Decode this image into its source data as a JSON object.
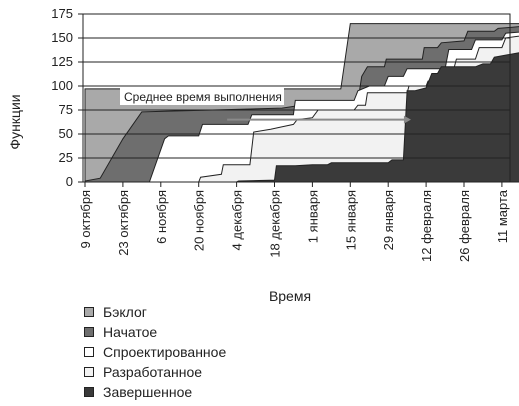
{
  "chart_data": {
    "type": "area",
    "stacking": "cumulative",
    "ylabel": "Функции",
    "xlabel": "Время",
    "ylim": [
      0,
      175
    ],
    "yticks": [
      0,
      25,
      50,
      75,
      100,
      125,
      150,
      175
    ],
    "grid": true,
    "legend_position": "bottom-left",
    "x_categories": [
      "9 октября",
      "23 октября",
      "6 ноября",
      "20 ноября",
      "4 декабря",
      "18 декабря",
      "1 января",
      "15 января",
      "29 января",
      "12 февраля",
      "26 февраля",
      "11 марта"
    ],
    "annotation": {
      "text": "Среднее время выполнения",
      "arrow_from_x": 3.75,
      "arrow_to_x": 8.6,
      "y": 65
    },
    "series": [
      {
        "name": "Бэклог",
        "color": "#a9a9a9",
        "points": [
          [
            0,
            97
          ],
          [
            6.75,
            97
          ],
          [
            7.0,
            165
          ],
          [
            12.0,
            165
          ]
        ]
      },
      {
        "name": "Начатое",
        "color": "#6e6e6e",
        "points": [
          [
            0,
            1
          ],
          [
            0.4,
            4
          ],
          [
            1.0,
            45
          ],
          [
            1.5,
            73
          ],
          [
            5.2,
            77
          ],
          [
            5.7,
            80
          ],
          [
            6.15,
            84
          ],
          [
            7.2,
            84
          ],
          [
            7.3,
            110
          ],
          [
            7.45,
            120
          ],
          [
            7.9,
            120
          ],
          [
            7.95,
            128
          ],
          [
            8.9,
            128
          ],
          [
            8.95,
            140
          ],
          [
            9.3,
            140
          ],
          [
            9.4,
            145
          ],
          [
            10.0,
            147
          ],
          [
            10.1,
            157
          ],
          [
            10.8,
            157
          ],
          [
            10.9,
            160
          ],
          [
            11.5,
            162
          ],
          [
            12.0,
            163
          ]
        ]
      },
      {
        "name": "Спроектированное",
        "color": "#ffffff",
        "points": [
          [
            0,
            0
          ],
          [
            1.7,
            0
          ],
          [
            2.1,
            45
          ],
          [
            2.2,
            48
          ],
          [
            3.0,
            48
          ],
          [
            3.1,
            60
          ],
          [
            4.3,
            60
          ],
          [
            4.4,
            70
          ],
          [
            5.5,
            70
          ],
          [
            5.55,
            85
          ],
          [
            7.1,
            85
          ],
          [
            7.2,
            95
          ],
          [
            7.5,
            100
          ],
          [
            7.9,
            100
          ],
          [
            8.0,
            110
          ],
          [
            8.4,
            110
          ],
          [
            8.5,
            118
          ],
          [
            9.5,
            118
          ],
          [
            9.6,
            138
          ],
          [
            10.2,
            138
          ],
          [
            10.3,
            148
          ],
          [
            11.0,
            148
          ],
          [
            11.1,
            155
          ],
          [
            12.0,
            158
          ]
        ]
      },
      {
        "name": "Разработанное",
        "color": "#f2f2f2",
        "points": [
          [
            0,
            0
          ],
          [
            3.0,
            0
          ],
          [
            3.05,
            5
          ],
          [
            3.6,
            8
          ],
          [
            3.65,
            18
          ],
          [
            4.35,
            18
          ],
          [
            4.45,
            52
          ],
          [
            4.9,
            55
          ],
          [
            5.5,
            60
          ],
          [
            5.6,
            65
          ],
          [
            6.0,
            67
          ],
          [
            6.15,
            75
          ],
          [
            7.1,
            75
          ],
          [
            7.2,
            80
          ],
          [
            7.4,
            80
          ],
          [
            7.45,
            93
          ],
          [
            8.5,
            93
          ],
          [
            8.55,
            100
          ],
          [
            9.0,
            100
          ],
          [
            9.05,
            105
          ],
          [
            9.3,
            108
          ],
          [
            9.4,
            113
          ],
          [
            9.7,
            113
          ],
          [
            9.8,
            128
          ],
          [
            10.3,
            128
          ],
          [
            10.4,
            140
          ],
          [
            11.0,
            140
          ],
          [
            11.1,
            150
          ],
          [
            12.0,
            155
          ]
        ]
      },
      {
        "name": "Завершенное",
        "color": "#3a3a3a",
        "points": [
          [
            0,
            0
          ],
          [
            4.0,
            0
          ],
          [
            4.05,
            1
          ],
          [
            5.0,
            2
          ],
          [
            5.05,
            17
          ],
          [
            5.55,
            17
          ],
          [
            6.0,
            18
          ],
          [
            6.4,
            18
          ],
          [
            6.5,
            20
          ],
          [
            8.0,
            20
          ],
          [
            8.1,
            23
          ],
          [
            8.4,
            23
          ],
          [
            8.5,
            95
          ],
          [
            8.7,
            95
          ],
          [
            9.0,
            98
          ],
          [
            9.15,
            113
          ],
          [
            9.3,
            113
          ],
          [
            9.4,
            120
          ],
          [
            10.3,
            120
          ],
          [
            10.5,
            123
          ],
          [
            10.7,
            123
          ],
          [
            10.8,
            130
          ],
          [
            11.5,
            135
          ],
          [
            11.55,
            160
          ],
          [
            12.0,
            161
          ]
        ]
      }
    ]
  }
}
